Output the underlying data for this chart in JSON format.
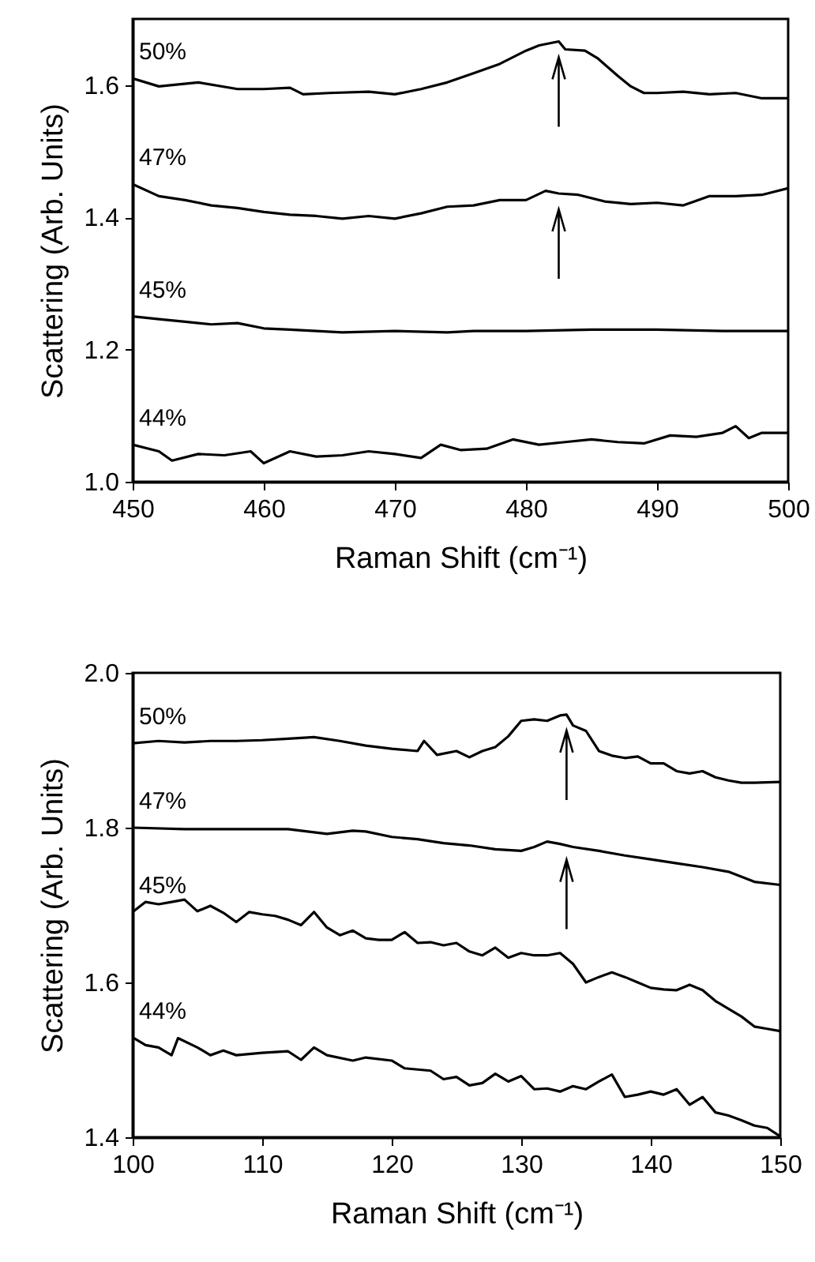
{
  "chart_data": [
    {
      "type": "line",
      "xlabel": "Raman Shift (cm⁻¹)",
      "ylabel": "Scattering (Arb. Units)",
      "xlim": [
        450,
        500
      ],
      "xticks": [
        450,
        460,
        470,
        480,
        490,
        500
      ],
      "ylim": [
        1.0,
        1.7
      ],
      "yticks": [
        {
          "value": 1,
          "label": "1.0"
        },
        1.2,
        1.4,
        1.6
      ],
      "series": [
        {
          "name": "50%",
          "color": "#000000",
          "x": [
            450,
            452,
            455,
            458,
            460,
            462,
            463,
            465,
            468,
            470,
            472,
            474,
            476,
            478,
            480,
            481,
            482.5,
            483,
            484.5,
            485.5,
            487,
            488,
            489,
            490,
            492,
            494,
            496,
            498,
            500
          ],
          "values": [
            1.61,
            1.598,
            1.604,
            1.594,
            1.594,
            1.596,
            1.586,
            1.588,
            1.59,
            1.586,
            1.594,
            1.604,
            1.618,
            1.632,
            1.652,
            1.66,
            1.666,
            1.654,
            1.652,
            1.64,
            1.614,
            1.598,
            1.588,
            1.588,
            1.59,
            1.586,
            1.588,
            1.58,
            1.58
          ]
        },
        {
          "name": "47%",
          "color": "#000000",
          "x": [
            450,
            452,
            454,
            456,
            458,
            460,
            462,
            464,
            466,
            468,
            470,
            472,
            474,
            476,
            478,
            480,
            481.5,
            482.5,
            484,
            486,
            488,
            490,
            492,
            494,
            496,
            498,
            500
          ],
          "values": [
            1.45,
            1.432,
            1.426,
            1.418,
            1.414,
            1.408,
            1.404,
            1.402,
            1.398,
            1.402,
            1.398,
            1.406,
            1.416,
            1.418,
            1.426,
            1.426,
            1.44,
            1.436,
            1.434,
            1.424,
            1.42,
            1.422,
            1.418,
            1.432,
            1.432,
            1.434,
            1.444
          ]
        },
        {
          "name": "45%",
          "color": "#000000",
          "x": [
            450,
            452,
            454,
            456,
            458,
            460,
            462,
            466,
            470,
            474,
            476,
            480,
            485,
            490,
            495,
            500
          ],
          "values": [
            1.25,
            1.246,
            1.242,
            1.238,
            1.24,
            1.232,
            1.23,
            1.226,
            1.228,
            1.226,
            1.228,
            1.228,
            1.23,
            1.23,
            1.228,
            1.228
          ]
        },
        {
          "name": "44%",
          "color": "#000000",
          "x": [
            450,
            452,
            453,
            455,
            457,
            459,
            460,
            462,
            464,
            466,
            468,
            470,
            472,
            473.5,
            475,
            477,
            479,
            481,
            483,
            485,
            487,
            489,
            491,
            493,
            495,
            496,
            497,
            498,
            500
          ],
          "values": [
            1.056,
            1.046,
            1.032,
            1.042,
            1.04,
            1.046,
            1.028,
            1.046,
            1.038,
            1.04,
            1.046,
            1.042,
            1.036,
            1.056,
            1.048,
            1.05,
            1.064,
            1.056,
            1.06,
            1.064,
            1.06,
            1.058,
            1.07,
            1.068,
            1.074,
            1.084,
            1.066,
            1.074,
            1.074
          ]
        }
      ]
    },
    {
      "type": "line",
      "xlabel": "Raman Shift (cm⁻¹)",
      "ylabel": "Scattering (Arb. Units)",
      "xlim": [
        100,
        150
      ],
      "xticks": [
        100,
        110,
        120,
        130,
        140,
        150
      ],
      "ylim": [
        1.4,
        2.0
      ],
      "yticks": [
        1.4,
        1.6,
        1.8,
        {
          "value": 2,
          "label": "2.0"
        }
      ],
      "series": [
        {
          "name": "50%",
          "color": "#000000",
          "x": [
            100,
            102,
            104,
            106,
            108,
            110,
            112,
            114,
            116,
            118,
            120,
            122,
            122.5,
            123.5,
            125,
            126,
            127,
            128,
            129,
            130,
            131,
            132,
            133,
            133.5,
            134,
            135,
            136,
            137,
            138,
            139,
            140,
            141,
            142,
            143,
            144,
            145,
            146,
            147,
            148,
            150
          ],
          "values": [
            1.909,
            1.912,
            1.91,
            1.912,
            1.912,
            1.913,
            1.915,
            1.917,
            1.912,
            1.906,
            1.902,
            1.899,
            1.912,
            1.894,
            1.899,
            1.891,
            1.899,
            1.904,
            1.918,
            1.938,
            1.94,
            1.938,
            1.945,
            1.946,
            1.932,
            1.925,
            1.899,
            1.893,
            1.89,
            1.892,
            1.883,
            1.883,
            1.873,
            1.87,
            1.873,
            1.865,
            1.861,
            1.858,
            1.858,
            1.859
          ]
        },
        {
          "name": "47%",
          "color": "#000000",
          "x": [
            100,
            104,
            108,
            112,
            115,
            117,
            118,
            120,
            122,
            124,
            126,
            128,
            130,
            131,
            132,
            133,
            134,
            136,
            138,
            140,
            142,
            144,
            146,
            148,
            150
          ],
          "values": [
            1.8,
            1.798,
            1.798,
            1.798,
            1.792,
            1.796,
            1.795,
            1.788,
            1.785,
            1.78,
            1.777,
            1.772,
            1.77,
            1.775,
            1.782,
            1.779,
            1.775,
            1.77,
            1.764,
            1.759,
            1.754,
            1.749,
            1.743,
            1.73,
            1.726
          ]
        },
        {
          "name": "45%",
          "color": "#000000",
          "x": [
            100,
            101,
            102,
            103,
            104,
            105,
            106,
            107,
            108,
            109,
            110,
            111,
            112,
            113,
            114,
            115,
            116,
            117,
            118,
            119,
            120,
            121,
            122,
            123,
            124,
            125,
            126,
            127,
            128,
            129,
            130,
            131,
            132,
            133,
            134,
            135,
            136,
            137,
            138,
            139,
            140,
            141,
            142,
            143,
            144,
            145,
            146,
            147,
            148,
            149,
            150
          ],
          "values": [
            1.691,
            1.704,
            1.701,
            1.704,
            1.707,
            1.692,
            1.699,
            1.69,
            1.678,
            1.691,
            1.688,
            1.686,
            1.681,
            1.674,
            1.691,
            1.671,
            1.661,
            1.667,
            1.657,
            1.655,
            1.655,
            1.665,
            1.651,
            1.652,
            1.648,
            1.651,
            1.64,
            1.635,
            1.645,
            1.632,
            1.638,
            1.635,
            1.635,
            1.638,
            1.624,
            1.6,
            1.607,
            1.613,
            1.607,
            1.6,
            1.593,
            1.591,
            1.59,
            1.597,
            1.59,
            1.576,
            1.566,
            1.556,
            1.543,
            1.54,
            1.537
          ]
        },
        {
          "name": "44%",
          "color": "#000000",
          "x": [
            100,
            101,
            102,
            103,
            103.5,
            105,
            106,
            107,
            108,
            110,
            112,
            113,
            114,
            115,
            117,
            118,
            120,
            121,
            123,
            124,
            125,
            126,
            127,
            128,
            129,
            130,
            131,
            132,
            133,
            134,
            135,
            136,
            137,
            138,
            139,
            140,
            141,
            142,
            143,
            144,
            145,
            146,
            147,
            148,
            149,
            150
          ],
          "values": [
            1.529,
            1.519,
            1.516,
            1.506,
            1.528,
            1.516,
            1.506,
            1.512,
            1.506,
            1.509,
            1.511,
            1.5,
            1.516,
            1.506,
            1.499,
            1.503,
            1.499,
            1.489,
            1.486,
            1.475,
            1.478,
            1.467,
            1.47,
            1.482,
            1.472,
            1.479,
            1.462,
            1.463,
            1.459,
            1.466,
            1.462,
            1.472,
            1.481,
            1.452,
            1.455,
            1.459,
            1.455,
            1.462,
            1.442,
            1.452,
            1.432,
            1.428,
            1.422,
            1.415,
            1.412,
            1.401
          ]
        }
      ]
    }
  ]
}
